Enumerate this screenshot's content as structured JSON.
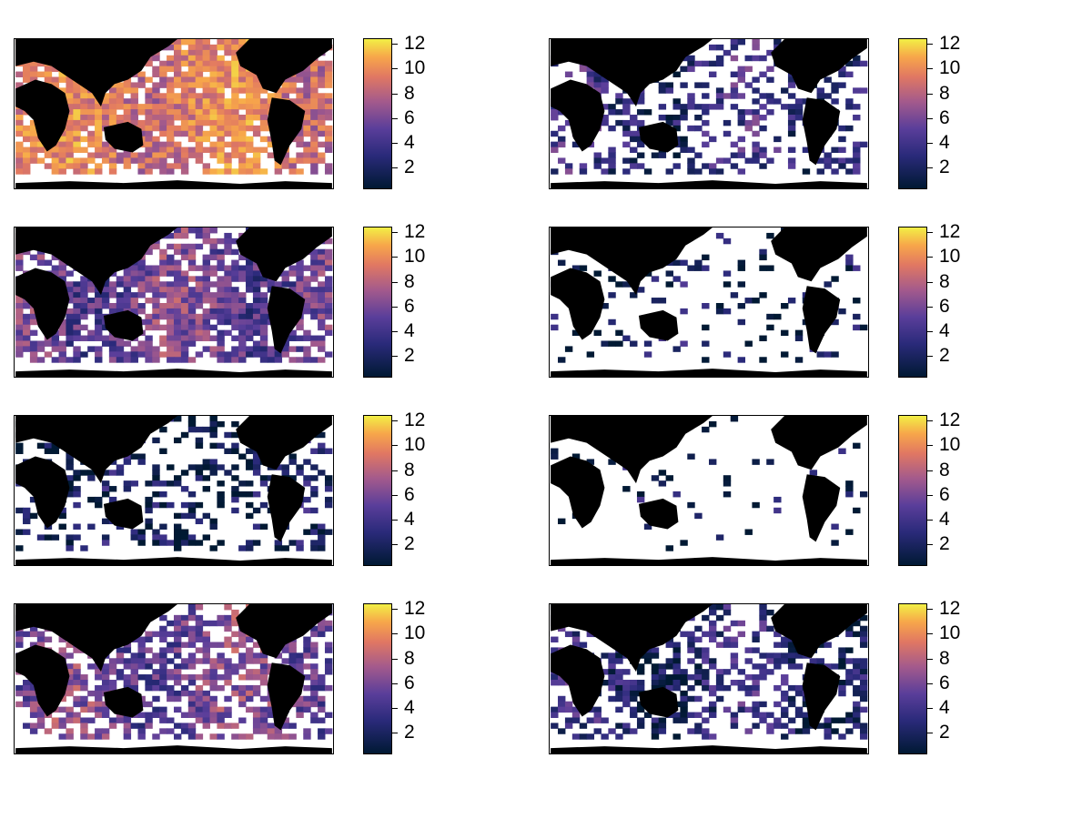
{
  "chart_data": {
    "type": "heatmap",
    "panels": 8,
    "layout": "4 rows x 2 columns",
    "colorbar": {
      "ticks": [
        2,
        4,
        6,
        8,
        10,
        12
      ],
      "range": [
        1,
        12
      ],
      "colors": [
        "#001933",
        "#2a2a7a",
        "#5a3e9a",
        "#a35a8c",
        "#e17862",
        "#f7a64a",
        "#f2ef45"
      ]
    },
    "land_color": "#000000",
    "masked_color": "#ffffff",
    "maps": [
      {
        "id": "panel-1",
        "coverage": 0.95,
        "level": 0.68
      },
      {
        "id": "panel-2",
        "coverage": 0.45,
        "level": 0.2
      },
      {
        "id": "panel-3",
        "coverage": 0.85,
        "level": 0.36
      },
      {
        "id": "panel-4",
        "coverage": 0.14,
        "level": 0.06
      },
      {
        "id": "panel-5",
        "coverage": 0.4,
        "level": 0.08
      },
      {
        "id": "panel-6",
        "coverage": 0.06,
        "level": 0.05
      },
      {
        "id": "panel-7",
        "coverage": 0.7,
        "level": 0.38
      },
      {
        "id": "panel-8",
        "coverage": 0.55,
        "level": 0.16
      }
    ]
  }
}
